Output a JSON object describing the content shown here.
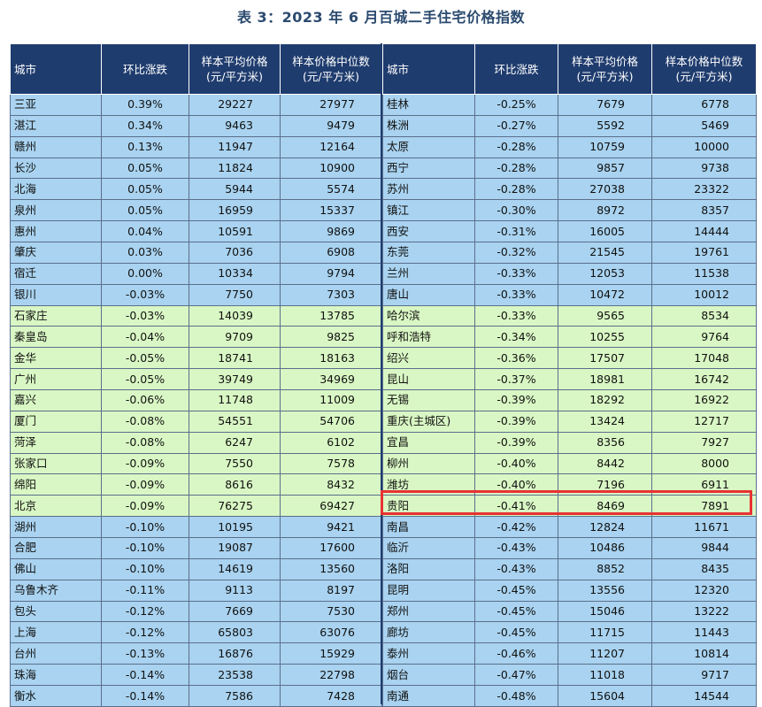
{
  "title": "表 3：2023 年 6 月百城二手住宅价格指数",
  "colors": {
    "header_bg": "#1f3c6e",
    "row_blue": "#a9d3f0",
    "row_green": "#d9f7c4",
    "highlight": "#e83232"
  },
  "columns": [
    "城市",
    "环比涨跌",
    "样本平均价格\n(元/平方米)",
    "样本价格中位数\n(元/平方米)"
  ],
  "left_rows": [
    {
      "city": "三亚",
      "chg": "0.39%",
      "avg": "29227",
      "med": "27977",
      "tone": "blue"
    },
    {
      "city": "湛江",
      "chg": "0.34%",
      "avg": "9463",
      "med": "9479",
      "tone": "blue"
    },
    {
      "city": "赣州",
      "chg": "0.13%",
      "avg": "11947",
      "med": "12164",
      "tone": "blue"
    },
    {
      "city": "长沙",
      "chg": "0.05%",
      "avg": "11824",
      "med": "10900",
      "tone": "blue"
    },
    {
      "city": "北海",
      "chg": "0.05%",
      "avg": "5944",
      "med": "5574",
      "tone": "blue"
    },
    {
      "city": "泉州",
      "chg": "0.05%",
      "avg": "16959",
      "med": "15337",
      "tone": "blue"
    },
    {
      "city": "惠州",
      "chg": "0.04%",
      "avg": "10591",
      "med": "9869",
      "tone": "blue"
    },
    {
      "city": "肇庆",
      "chg": "0.03%",
      "avg": "7036",
      "med": "6908",
      "tone": "blue"
    },
    {
      "city": "宿迁",
      "chg": "0.00%",
      "avg": "10334",
      "med": "9794",
      "tone": "blue"
    },
    {
      "city": "银川",
      "chg": "-0.03%",
      "avg": "7750",
      "med": "7303",
      "tone": "blue"
    },
    {
      "city": "石家庄",
      "chg": "-0.03%",
      "avg": "14039",
      "med": "13785",
      "tone": "green"
    },
    {
      "city": "秦皇岛",
      "chg": "-0.04%",
      "avg": "9709",
      "med": "9825",
      "tone": "green"
    },
    {
      "city": "金华",
      "chg": "-0.05%",
      "avg": "18741",
      "med": "18163",
      "tone": "green"
    },
    {
      "city": "广州",
      "chg": "-0.05%",
      "avg": "39749",
      "med": "34969",
      "tone": "green"
    },
    {
      "city": "嘉兴",
      "chg": "-0.06%",
      "avg": "11748",
      "med": "11009",
      "tone": "green"
    },
    {
      "city": "厦门",
      "chg": "-0.08%",
      "avg": "54551",
      "med": "54706",
      "tone": "green"
    },
    {
      "city": "菏泽",
      "chg": "-0.08%",
      "avg": "6247",
      "med": "6102",
      "tone": "green"
    },
    {
      "city": "张家口",
      "chg": "-0.09%",
      "avg": "7550",
      "med": "7578",
      "tone": "green"
    },
    {
      "city": "绵阳",
      "chg": "-0.09%",
      "avg": "8616",
      "med": "8432",
      "tone": "green"
    },
    {
      "city": "北京",
      "chg": "-0.09%",
      "avg": "76275",
      "med": "69427",
      "tone": "green"
    },
    {
      "city": "湖州",
      "chg": "-0.10%",
      "avg": "10195",
      "med": "9421",
      "tone": "blue"
    },
    {
      "city": "合肥",
      "chg": "-0.10%",
      "avg": "19087",
      "med": "17600",
      "tone": "blue"
    },
    {
      "city": "佛山",
      "chg": "-0.10%",
      "avg": "14619",
      "med": "13560",
      "tone": "blue"
    },
    {
      "city": "乌鲁木齐",
      "chg": "-0.11%",
      "avg": "9113",
      "med": "8197",
      "tone": "blue"
    },
    {
      "city": "包头",
      "chg": "-0.12%",
      "avg": "7669",
      "med": "7530",
      "tone": "blue"
    },
    {
      "city": "上海",
      "chg": "-0.12%",
      "avg": "65803",
      "med": "63076",
      "tone": "blue"
    },
    {
      "city": "台州",
      "chg": "-0.13%",
      "avg": "16876",
      "med": "15929",
      "tone": "blue"
    },
    {
      "city": "珠海",
      "chg": "-0.14%",
      "avg": "23538",
      "med": "22798",
      "tone": "blue"
    },
    {
      "city": "衡水",
      "chg": "-0.14%",
      "avg": "7586",
      "med": "7428",
      "tone": "blue"
    }
  ],
  "right_rows": [
    {
      "city": "桂林",
      "chg": "-0.25%",
      "avg": "7679",
      "med": "6778",
      "tone": "blue"
    },
    {
      "city": "株洲",
      "chg": "-0.27%",
      "avg": "5592",
      "med": "5469",
      "tone": "blue"
    },
    {
      "city": "太原",
      "chg": "-0.28%",
      "avg": "10759",
      "med": "10000",
      "tone": "blue"
    },
    {
      "city": "西宁",
      "chg": "-0.28%",
      "avg": "9857",
      "med": "9738",
      "tone": "blue"
    },
    {
      "city": "苏州",
      "chg": "-0.28%",
      "avg": "27038",
      "med": "23322",
      "tone": "blue"
    },
    {
      "city": "镇江",
      "chg": "-0.30%",
      "avg": "8972",
      "med": "8357",
      "tone": "blue"
    },
    {
      "city": "西安",
      "chg": "-0.31%",
      "avg": "16005",
      "med": "14444",
      "tone": "blue"
    },
    {
      "city": "东莞",
      "chg": "-0.32%",
      "avg": "21545",
      "med": "19761",
      "tone": "blue"
    },
    {
      "city": "兰州",
      "chg": "-0.33%",
      "avg": "12053",
      "med": "11538",
      "tone": "blue"
    },
    {
      "city": "唐山",
      "chg": "-0.33%",
      "avg": "10472",
      "med": "10012",
      "tone": "blue"
    },
    {
      "city": "哈尔滨",
      "chg": "-0.33%",
      "avg": "9565",
      "med": "8534",
      "tone": "green"
    },
    {
      "city": "呼和浩特",
      "chg": "-0.34%",
      "avg": "10255",
      "med": "9764",
      "tone": "green"
    },
    {
      "city": "绍兴",
      "chg": "-0.36%",
      "avg": "17507",
      "med": "17048",
      "tone": "green"
    },
    {
      "city": "昆山",
      "chg": "-0.37%",
      "avg": "18981",
      "med": "16742",
      "tone": "green"
    },
    {
      "city": "无锡",
      "chg": "-0.39%",
      "avg": "18292",
      "med": "16922",
      "tone": "green"
    },
    {
      "city": "重庆(主城区)",
      "chg": "-0.39%",
      "avg": "13424",
      "med": "12717",
      "tone": "green"
    },
    {
      "city": "宜昌",
      "chg": "-0.39%",
      "avg": "8356",
      "med": "7927",
      "tone": "green"
    },
    {
      "city": "柳州",
      "chg": "-0.40%",
      "avg": "8442",
      "med": "8000",
      "tone": "green"
    },
    {
      "city": "潍坊",
      "chg": "-0.40%",
      "avg": "7196",
      "med": "6911",
      "tone": "green"
    },
    {
      "city": "贵阳",
      "chg": "-0.41%",
      "avg": "8469",
      "med": "7891",
      "tone": "green"
    },
    {
      "city": "南昌",
      "chg": "-0.42%",
      "avg": "12824",
      "med": "11671",
      "tone": "blue"
    },
    {
      "city": "临沂",
      "chg": "-0.43%",
      "avg": "10486",
      "med": "9844",
      "tone": "blue"
    },
    {
      "city": "洛阳",
      "chg": "-0.43%",
      "avg": "8852",
      "med": "8435",
      "tone": "blue"
    },
    {
      "city": "昆明",
      "chg": "-0.45%",
      "avg": "13556",
      "med": "12320",
      "tone": "blue"
    },
    {
      "city": "郑州",
      "chg": "-0.45%",
      "avg": "15046",
      "med": "13222",
      "tone": "blue"
    },
    {
      "city": "廊坊",
      "chg": "-0.45%",
      "avg": "11715",
      "med": "11443",
      "tone": "blue"
    },
    {
      "city": "泰州",
      "chg": "-0.46%",
      "avg": "11207",
      "med": "10814",
      "tone": "blue"
    },
    {
      "city": "烟台",
      "chg": "-0.47%",
      "avg": "11018",
      "med": "9717",
      "tone": "blue"
    },
    {
      "city": "南通",
      "chg": "-0.48%",
      "avg": "15604",
      "med": "14544",
      "tone": "blue"
    }
  ],
  "highlighted_city": "贵阳"
}
